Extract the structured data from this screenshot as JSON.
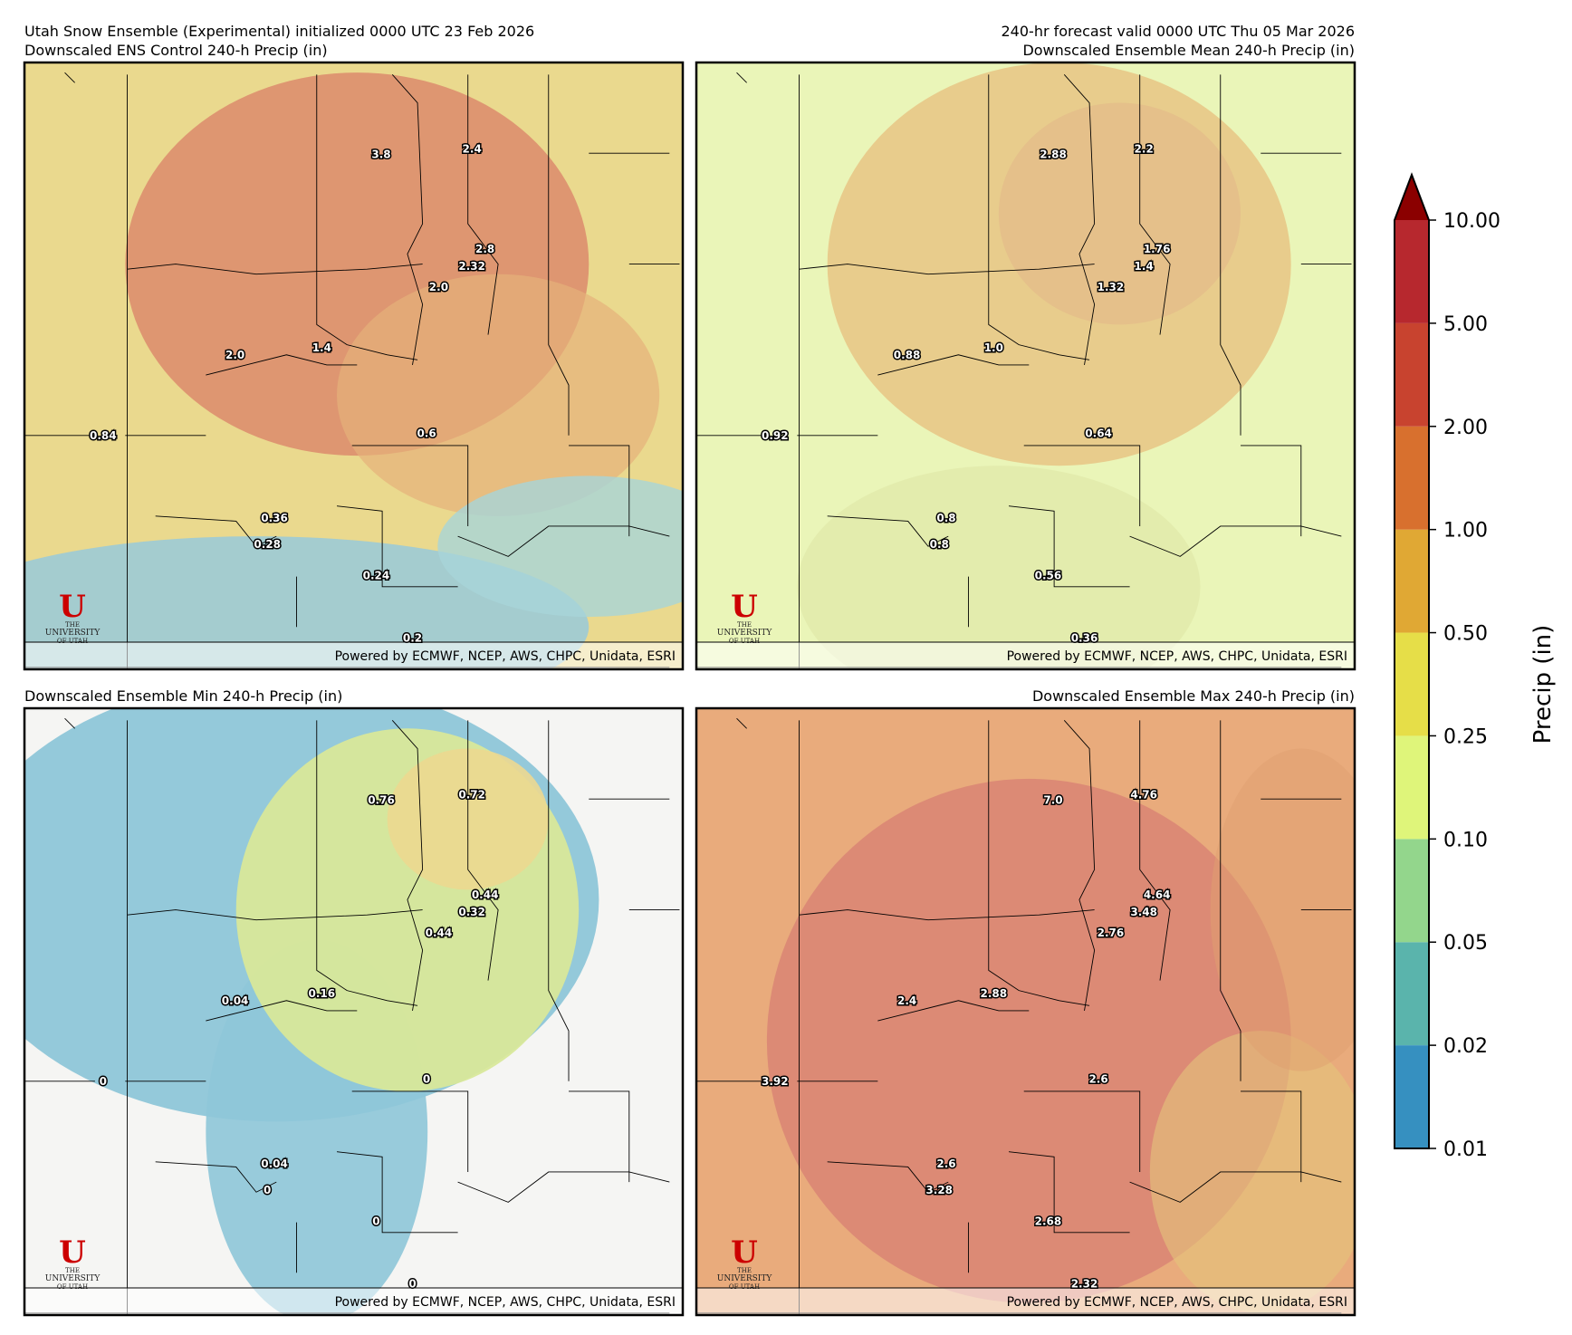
{
  "header": {
    "left": "Utah Snow Ensemble (Experimental) initialized 0000 UTC 23 Feb 2026",
    "right": "240-hr forecast valid 0000 UTC Thu 05 Mar 2026"
  },
  "panels": [
    {
      "title": "Downscaled ENS Control 240-h Precip (in)",
      "point_labels": [
        "3.8",
        "2.4",
        "2.8",
        "2.32",
        "2.0",
        "2.0",
        "1.4",
        "0.84",
        "0.6",
        "0.36",
        "0.28",
        "0.24",
        "0.2"
      ],
      "footer": "Powered by ECMWF, NCEP, AWS, CHPC, Unidata, ESRI",
      "logo": {
        "mark": "U",
        "lines": [
          "THE",
          "UNIVERSITY",
          "OF UTAH"
        ]
      }
    },
    {
      "title": "Downscaled Ensemble Mean 240-h Precip (in)",
      "point_labels": [
        "2.88",
        "2.2",
        "1.76",
        "1.4",
        "1.32",
        "0.88",
        "1.0",
        "0.92",
        "0.64",
        "0.8",
        "0.8",
        "0.56",
        "0.36"
      ],
      "footer": "Powered by ECMWF, NCEP, AWS, CHPC, Unidata, ESRI",
      "logo": {
        "mark": "U",
        "lines": [
          "THE",
          "UNIVERSITY",
          "OF UTAH"
        ]
      }
    },
    {
      "title": "Downscaled Ensemble Min 240-h Precip (in)",
      "point_labels": [
        "0.76",
        "0.72",
        "0.44",
        "0.32",
        "0.44",
        "0.04",
        "0.16",
        "0",
        "0",
        "0.04",
        "0",
        "0",
        "0"
      ],
      "footer": "Powered by ECMWF, NCEP, AWS, CHPC, Unidata, ESRI",
      "logo": {
        "mark": "U",
        "lines": [
          "THE",
          "UNIVERSITY",
          "OF UTAH"
        ]
      }
    },
    {
      "title": "Downscaled Ensemble Max 240-h Precip (in)",
      "point_labels": [
        "7.0",
        "4.76",
        "4.64",
        "3.48",
        "2.76",
        "2.4",
        "2.88",
        "3.92",
        "2.6",
        "2.6",
        "3.28",
        "2.68",
        "2.32"
      ],
      "footer": "Powered by ECMWF, NCEP, AWS, CHPC, Unidata, ESRI",
      "logo": {
        "mark": "U",
        "lines": [
          "THE",
          "UNIVERSITY",
          "OF UTAH"
        ]
      }
    }
  ],
  "colorbar": {
    "label": "Precip (in)",
    "ticks": [
      0.01,
      0.02,
      0.05,
      {
        "value": 0.1,
        "label": "0.10"
      },
      0.25,
      {
        "value": 0.5,
        "label": "0.50"
      },
      {
        "value": 1,
        "label": "1.00"
      },
      {
        "value": 2,
        "label": "2.00"
      },
      {
        "value": 5,
        "label": "5.00"
      },
      {
        "value": 10,
        "label": "10.00"
      }
    ],
    "colors": [
      "#3690c0",
      "#5ab4ac",
      "#93d68c",
      "#dff57a",
      "#e6de48",
      "#e0a834",
      "#d8702e",
      "#c8432f",
      "#b7282e"
    ],
    "extend_color": "#8b0000"
  }
}
